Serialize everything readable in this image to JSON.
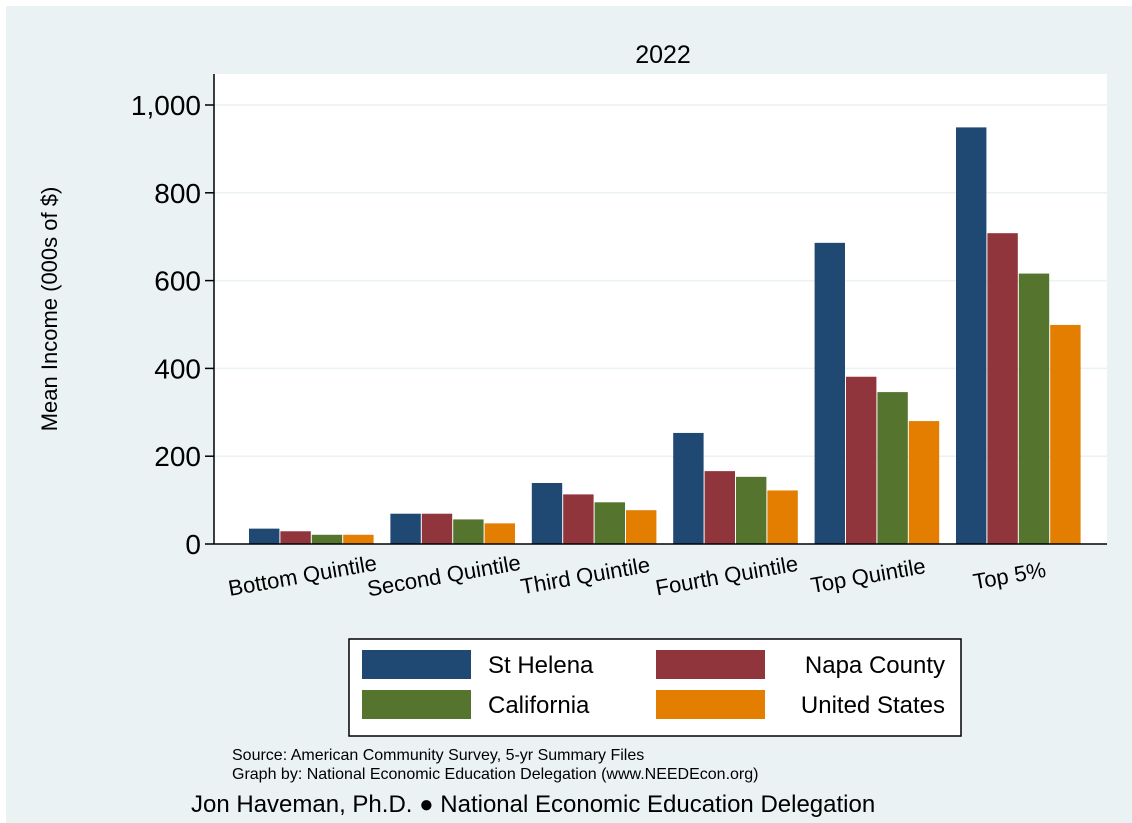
{
  "chart_data": {
    "type": "bar",
    "title": "2022",
    "ylabel": "Mean Income (000s of $)",
    "xlabel": "",
    "ylim": [
      0,
      1000
    ],
    "yticks": [
      0,
      200,
      400,
      600,
      800,
      1000
    ],
    "ytick_labels": [
      "0",
      "200",
      "400",
      "600",
      "800",
      "1,000"
    ],
    "grid": true,
    "legend_position": "bottom",
    "categories": [
      "Bottom Quintile",
      "Second Quintile",
      "Third Quintile",
      "Fourth Quintile",
      "Top Quintile",
      "Top 5%"
    ],
    "series": [
      {
        "name": "St Helena",
        "color": "#1f4872",
        "values": [
          35,
          69,
          139,
          253,
          686,
          949
        ]
      },
      {
        "name": "Napa County",
        "color": "#90353b",
        "values": [
          29,
          69,
          113,
          166,
          381,
          708
        ]
      },
      {
        "name": "California",
        "color": "#55752f",
        "values": [
          21,
          56,
          95,
          153,
          346,
          616
        ]
      },
      {
        "name": "United States",
        "color": "#e37e00",
        "values": [
          21,
          47,
          77,
          122,
          280,
          499
        ]
      }
    ]
  },
  "footer": {
    "source": "Source: American Community Survey, 5-yr Summary Files",
    "graph_by": "Graph by: National Economic Education Delegation (www.NEEDEcon.org)",
    "author": "Jon Haveman, Ph.D. ● National Economic Education Delegation"
  }
}
